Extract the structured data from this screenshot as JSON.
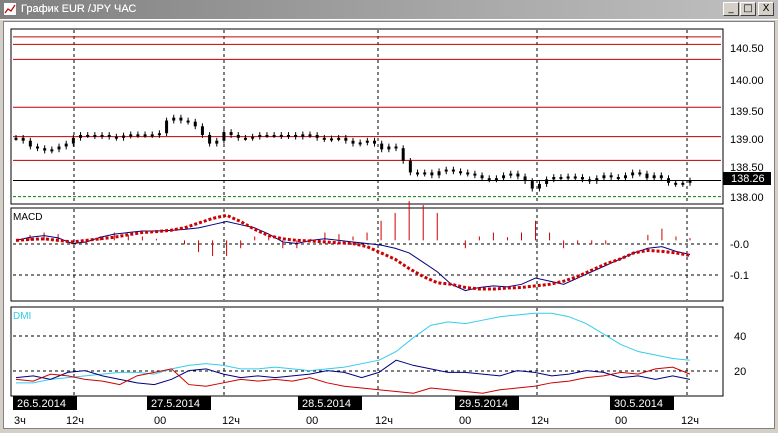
{
  "window": {
    "title": "График EUR /JPY  ЧАС",
    "minimize_label": "_",
    "maximize_label": "□",
    "close_label": "X"
  },
  "price_panel": {
    "axis_ticks": [
      "140.50",
      "140.00",
      "139.50",
      "139.00",
      "138.50",
      "138.00"
    ],
    "current_price_label": "138.26"
  },
  "macd_panel": {
    "title": "MACD",
    "axis_ticks": [
      "-0.0",
      "-0.1"
    ]
  },
  "dmi_panel": {
    "title": "DMI",
    "axis_ticks": [
      "40",
      "20"
    ]
  },
  "time_axis": {
    "date_labels": [
      "26.5.2014",
      "27.5.2014",
      "28.5.2014",
      "29.5.2014",
      "30.5.2014"
    ],
    "hour_labels": [
      "3ч",
      "12ч",
      "00",
      "12ч",
      "00",
      "12ч",
      "00",
      "12ч",
      "00",
      "12ч"
    ]
  },
  "colors": {
    "price_bars": "#000000",
    "resistance_lines": "#c00000",
    "support_line": "#008000",
    "macd_line": "#000080",
    "macd_signal": "#cc0000",
    "macd_hist": "#cc0000",
    "dmi_adx": "#33ccee",
    "dmi_plus": "#000080",
    "dmi_minus": "#cc0000"
  },
  "chart_data": [
    {
      "type": "line",
      "title": "",
      "ylim": [
        137.87,
        140.87
      ],
      "price_levels": [
        140.75,
        140.62,
        140.36,
        139.53,
        139.02,
        138.61
      ],
      "support_level": 137.98,
      "current_price": 138.26,
      "series": [
        {
          "values": [
            139.0,
            138.95,
            138.85,
            138.82,
            138.78,
            138.8,
            138.85,
            138.9,
            139.0,
            139.05,
            139.05,
            139.03,
            139.05,
            139.02,
            139.0,
            139.04,
            139.06,
            139.05,
            139.06,
            139.05,
            139.08,
            139.3,
            139.35,
            139.3,
            139.28,
            139.2,
            139.05,
            138.9,
            138.95,
            139.1,
            139.05,
            139.0,
            139.0,
            139.02,
            139.05,
            139.05,
            139.05,
            139.03,
            139.05,
            139.02,
            139.06,
            139.05,
            139.0,
            138.98,
            138.99,
            139.0,
            138.95,
            138.9,
            138.92,
            138.95,
            138.9,
            138.8,
            138.85,
            138.82,
            138.6,
            138.4,
            138.38,
            138.4,
            138.35,
            138.42,
            138.45,
            138.42,
            138.4,
            138.38,
            138.35,
            138.3,
            138.28,
            138.3,
            138.35,
            138.38,
            138.33,
            138.25,
            138.12,
            138.2,
            138.28,
            138.32,
            138.3,
            138.33,
            138.32,
            138.28,
            138.25,
            138.3,
            138.35,
            138.32,
            138.3,
            138.35,
            138.4,
            138.38,
            138.3,
            138.35,
            138.3,
            138.22,
            138.2,
            138.22,
            138.26
          ]
        }
      ]
    },
    {
      "type": "line",
      "title": "MACD",
      "ylim": [
        -0.19,
        0.1
      ],
      "series": [
        {
          "values": [
            0.0,
            0.01,
            0.015,
            0.008,
            -0.01,
            -0.005,
            0.01,
            0.02,
            0.025,
            0.03,
            0.03,
            0.032,
            0.035,
            0.04,
            0.05,
            0.06,
            0.05,
            0.04,
            0.02,
            -0.005,
            -0.01,
            0.0,
            0.005,
            0.0,
            -0.005,
            -0.01,
            -0.015,
            -0.025,
            -0.04,
            -0.07,
            -0.1,
            -0.14,
            -0.16,
            -0.15,
            -0.145,
            -0.148,
            -0.14,
            -0.12,
            -0.13,
            -0.14,
            -0.12,
            -0.1,
            -0.08,
            -0.06,
            -0.04,
            -0.025,
            -0.02,
            -0.035,
            -0.045
          ]
        },
        {
          "values": [
            0.0,
            0.003,
            0.005,
            0.0,
            -0.005,
            0.0,
            0.005,
            0.01,
            0.018,
            0.025,
            0.028,
            0.032,
            0.04,
            0.055,
            0.07,
            0.08,
            0.06,
            0.035,
            0.015,
            0.005,
            0.0,
            -0.002,
            -0.005,
            -0.008,
            -0.01,
            -0.02,
            -0.04,
            -0.06,
            -0.09,
            -0.115,
            -0.135,
            -0.14,
            -0.15,
            -0.155,
            -0.155,
            -0.152,
            -0.15,
            -0.145,
            -0.14,
            -0.13,
            -0.115,
            -0.095,
            -0.075,
            -0.06,
            -0.04,
            -0.032,
            -0.035,
            -0.04,
            -0.048
          ]
        }
      ]
    },
    {
      "type": "line",
      "title": "DMI",
      "ylim": [
        5,
        55
      ],
      "series": [
        {
          "values": [
            12,
            12,
            14,
            15,
            16,
            17,
            18,
            18,
            17,
            20,
            22,
            23,
            22,
            20,
            20,
            21,
            20,
            19,
            20,
            21,
            23,
            25,
            30,
            38,
            45,
            47,
            46,
            48,
            50,
            51,
            52,
            52,
            50,
            46,
            40,
            34,
            30,
            28,
            26,
            25
          ]
        },
        {
          "values": [
            15,
            16,
            14,
            18,
            19,
            16,
            14,
            12,
            11,
            14,
            19,
            20,
            17,
            15,
            16,
            15,
            16,
            17,
            19,
            18,
            15,
            18,
            25,
            22,
            20,
            18,
            18,
            17,
            16,
            19,
            18,
            16,
            17,
            19,
            18,
            15,
            16,
            14,
            16,
            14
          ]
        },
        {
          "values": [
            14,
            13,
            17,
            16,
            14,
            13,
            11,
            16,
            18,
            20,
            11,
            10,
            12,
            14,
            13,
            14,
            13,
            15,
            12,
            10,
            9,
            8,
            7,
            6,
            9,
            8,
            7,
            6,
            8,
            9,
            10,
            12,
            13,
            15,
            16,
            18,
            17,
            20,
            21,
            17
          ]
        }
      ]
    }
  ]
}
